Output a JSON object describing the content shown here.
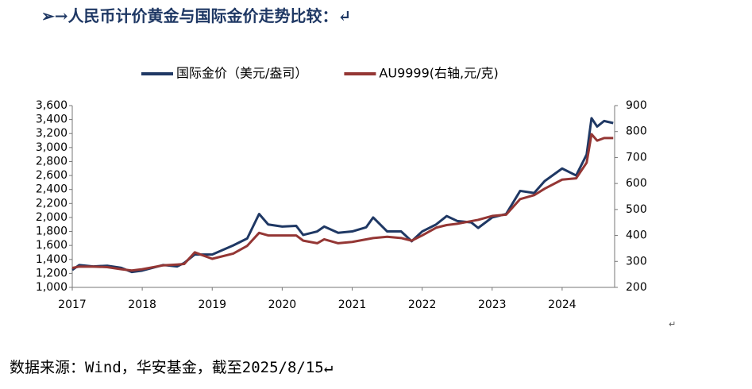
{
  "heading": "➢→人民币计价黄金与国际金价走势比较：↵",
  "chart_data": {
    "type": "line",
    "x": [
      2017.0,
      2017.1,
      2017.3,
      2017.5,
      2017.7,
      2017.85,
      2018.0,
      2018.3,
      2018.5,
      2018.6,
      2018.75,
      2019.0,
      2019.3,
      2019.5,
      2019.67,
      2019.8,
      2020.0,
      2020.2,
      2020.3,
      2020.5,
      2020.6,
      2020.8,
      2021.0,
      2021.2,
      2021.3,
      2021.5,
      2021.7,
      2021.85,
      2022.0,
      2022.2,
      2022.35,
      2022.5,
      2022.7,
      2022.8,
      2023.0,
      2023.2,
      2023.4,
      2023.6,
      2023.75,
      2024.0,
      2024.2,
      2024.35,
      2024.42,
      2024.5,
      2024.6,
      2024.73
    ],
    "series": [
      {
        "name": "国际金价（美元/盎司）",
        "color": "#1f3864",
        "values": [
          1250,
          1320,
          1300,
          1310,
          1280,
          1220,
          1240,
          1320,
          1300,
          1350,
          1470,
          1470,
          1600,
          1700,
          2050,
          1900,
          1870,
          1880,
          1750,
          1800,
          1870,
          1780,
          1800,
          1860,
          2000,
          1800,
          1800,
          1660,
          1800,
          1900,
          2020,
          1950,
          1930,
          1850,
          2000,
          2050,
          2380,
          2350,
          2520,
          2700,
          2600,
          2900,
          3420,
          3300,
          3380,
          3350
        ]
      },
      {
        "name": "AU9999(右轴,元/克)",
        "color": "#943634",
        "axis": "y2",
        "values": [
          275,
          280,
          280,
          278,
          270,
          265,
          270,
          285,
          288,
          290,
          335,
          310,
          330,
          360,
          410,
          400,
          400,
          400,
          380,
          370,
          385,
          370,
          375,
          385,
          390,
          395,
          390,
          380,
          400,
          430,
          440,
          445,
          455,
          460,
          475,
          480,
          540,
          555,
          580,
          615,
          620,
          680,
          790,
          765,
          775,
          775
        ]
      }
    ],
    "xlim": [
      2017,
      2024.75
    ],
    "xticks": [
      2017,
      2018,
      2019,
      2020,
      2021,
      2022,
      2023,
      2024
    ],
    "ylim": [
      1000,
      3600
    ],
    "yticks": [
      {
        "value": 1000,
        "label": "1,000"
      },
      {
        "value": 1200,
        "label": "1,200"
      },
      {
        "value": 1400,
        "label": "1,400"
      },
      {
        "value": 1600,
        "label": "1,600"
      },
      {
        "value": 1800,
        "label": "1,800"
      },
      {
        "value": 2000,
        "label": "2,000"
      },
      {
        "value": 2200,
        "label": "2,200"
      },
      {
        "value": 2400,
        "label": "2,400"
      },
      {
        "value": 2600,
        "label": "2,600"
      },
      {
        "value": 2800,
        "label": "2,800"
      },
      {
        "value": 3000,
        "label": "3,000"
      },
      {
        "value": 3200,
        "label": "3,200"
      },
      {
        "value": 3400,
        "label": "3,400"
      },
      {
        "value": 3600,
        "label": "3,600"
      }
    ],
    "y2lim": [
      200,
      900
    ],
    "y2ticks": [
      200,
      300,
      400,
      500,
      600,
      700,
      800,
      900
    ],
    "legend": "top"
  },
  "stray_mark": "↵",
  "source": "数据来源：Wind，华安基金，截至2025/8/15↵"
}
